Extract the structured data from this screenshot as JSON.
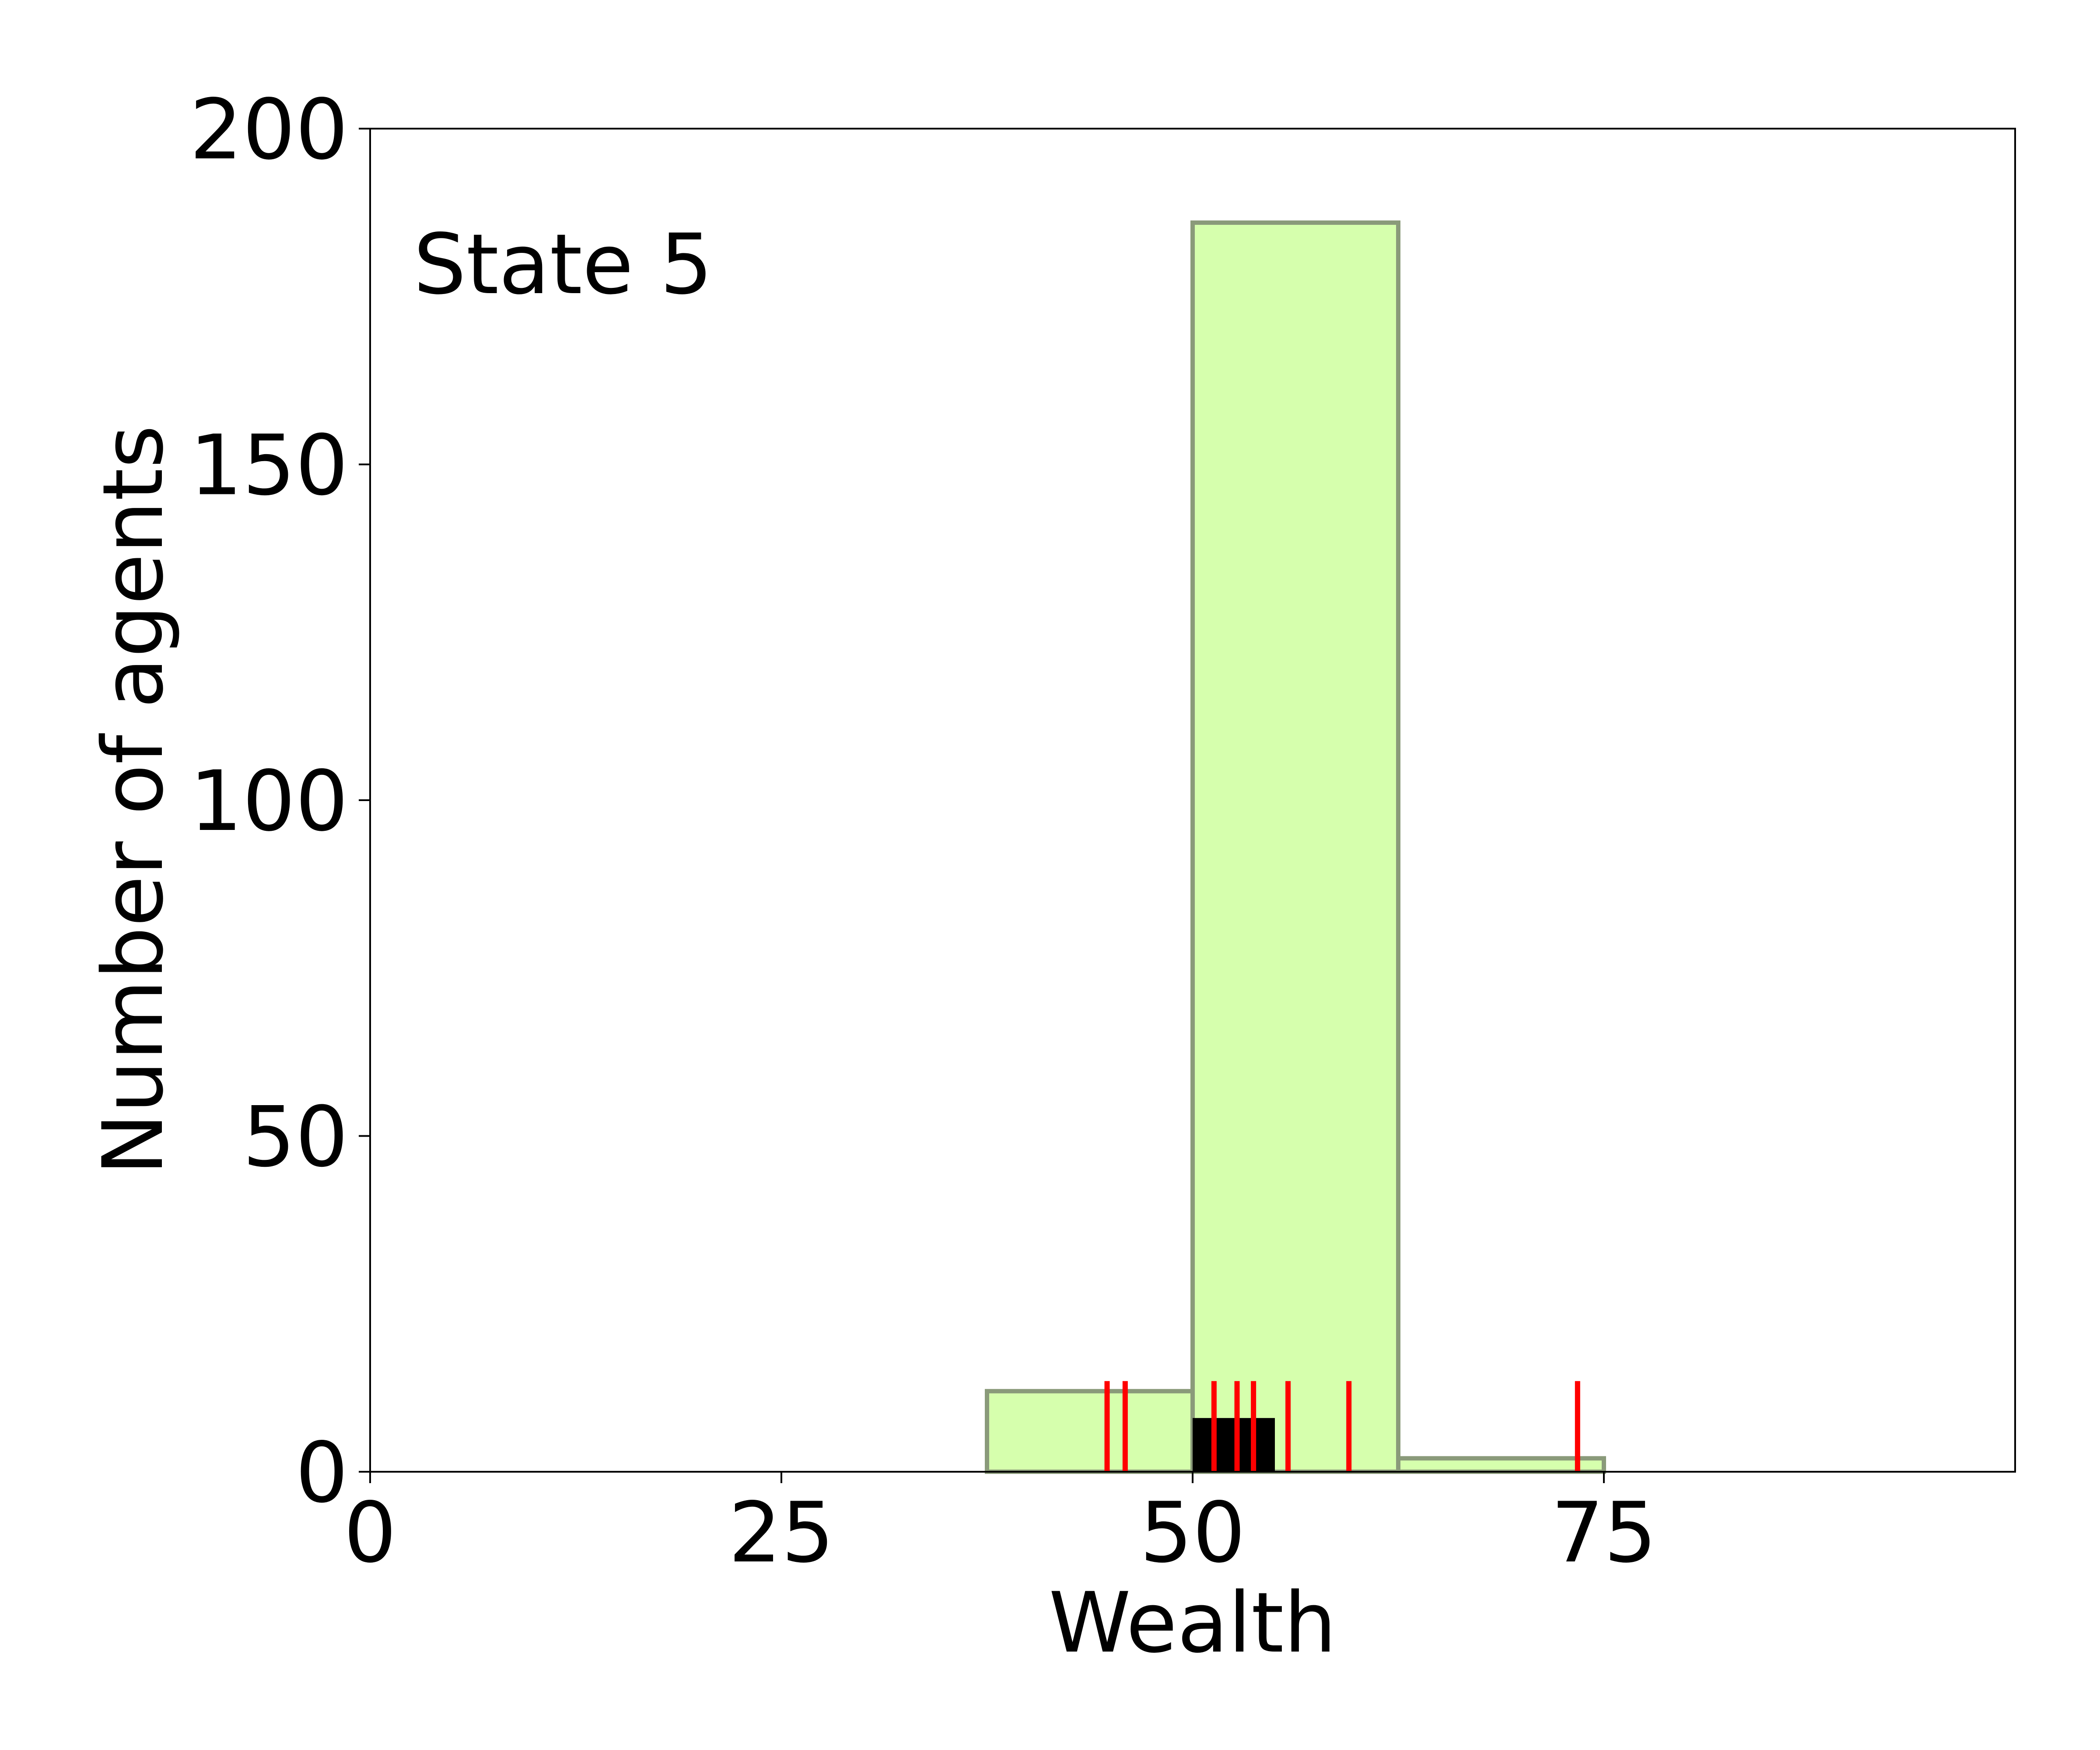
{
  "chart_data": {
    "type": "bar",
    "title": "",
    "xlabel": "Wealth",
    "ylabel": "Number of agents",
    "annotation": "State 5",
    "xlim": [
      0,
      100
    ],
    "ylim": [
      0,
      200
    ],
    "xticks": [
      0,
      25,
      50,
      75
    ],
    "yticks": [
      0,
      50,
      100,
      150,
      200
    ],
    "grid": false,
    "histogram": {
      "bin_edges": [
        0,
        12.5,
        25,
        37.5,
        50,
        62.5,
        75
      ],
      "counts": [
        0,
        0,
        0,
        12,
        186,
        2
      ],
      "fill_color": "#d6ffad",
      "edge_color": "#8a9a7a"
    },
    "black_bars": {
      "bin_edges": [
        50,
        51.25,
        52.5,
        53.75,
        55
      ],
      "counts": [
        8,
        8,
        8,
        8
      ],
      "color": "#000000"
    },
    "red_markers": {
      "x": [
        44.8,
        45.9,
        51.3,
        52.7,
        53.7,
        55.8,
        59.5,
        73.4
      ],
      "height": 13.5,
      "color": "#ff0000"
    }
  }
}
